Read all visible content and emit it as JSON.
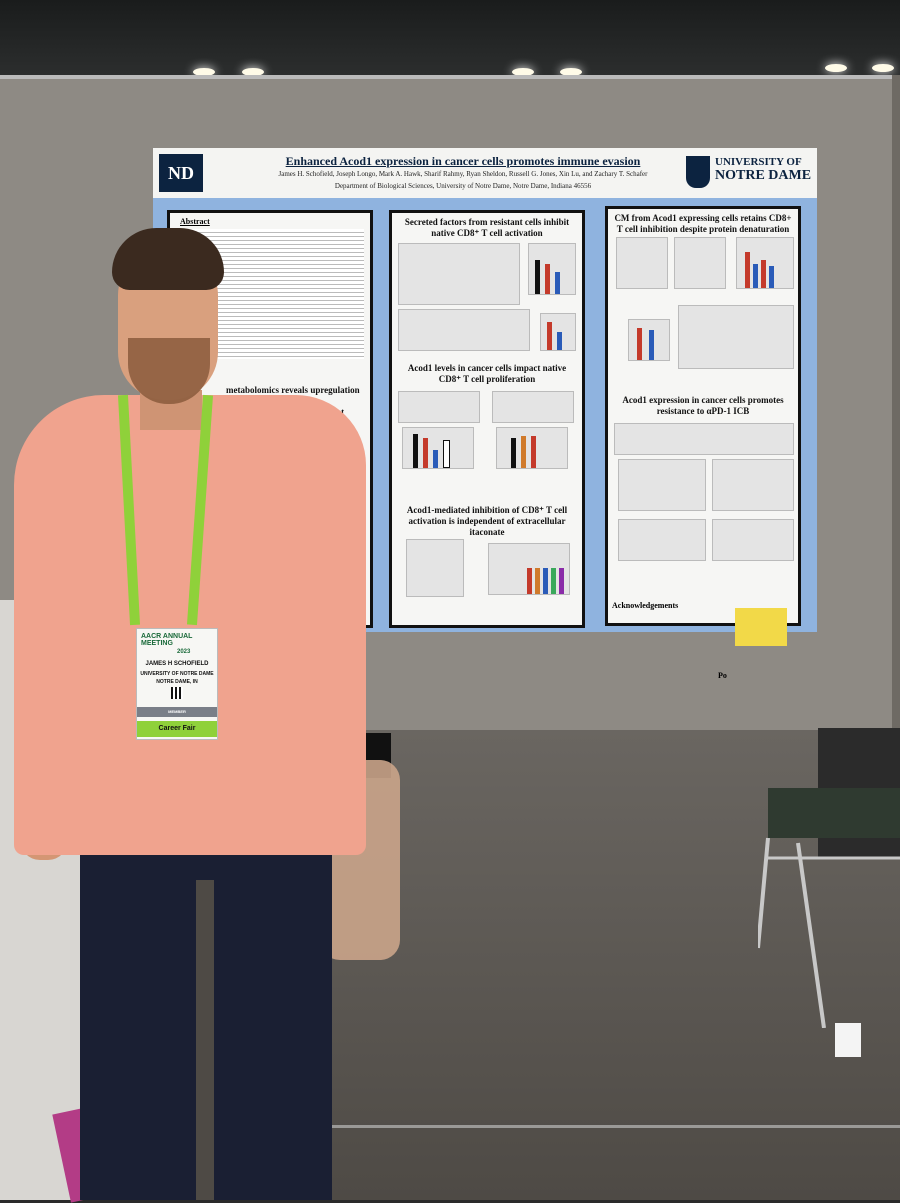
{
  "poster": {
    "title": "Enhanced Acod1 expression in cancer cells promotes immune evasion",
    "authors": "James H. Schofield, Joseph Longo, Mark A. Hawk, Sharif Rahmy, Ryan Sheldon, Russell G. Jones, Xin Lu, and Zachary T. Schafer",
    "department": "Department of Biological Sciences, University of Notre Dame, Notre Dame, Indiana 46556",
    "university_line1": "UNIVERSITY OF",
    "university_line2": "NOTRE DAME",
    "abstract_heading": "Abstract",
    "left_section": "metabolomics reveals upregulation of itaconate\nition in detached ICB-resistant CRPC cells",
    "mid_top": "Secreted factors from resistant cells inhibit native CD8⁺ T cell activation",
    "mid_middle": "Acod1 levels in cancer cells impact native CD8⁺ T cell proliferation",
    "mid_bottom": "Acod1-mediated inhibition of CD8⁺ T cell activation is independent of extracellular itaconate",
    "right_top": "CM from Acod1 expressing cells retains CD8+ T cell inhibition despite protein denaturation",
    "right_middle": "Acod1 expression in cancer cells promotes resistance to αPD-1 ICB",
    "acknowledgements": "Acknowledgements",
    "pocket_label": "Po"
  },
  "badge": {
    "org": "AACR ANNUAL MEETING",
    "year": "2023",
    "name": "JAMES H SCHOFIELD",
    "affiliation": "UNIVERSITY OF NOTRE DAME",
    "city": "NOTRE DAME, IN",
    "type": "MEMBER",
    "ribbon": "Career Fair"
  },
  "colors": {
    "poster_bg": "#8fb3df",
    "shirt": "#f0a38e",
    "lanyard": "#8fd13a",
    "nd_navy": "#0c2340"
  }
}
